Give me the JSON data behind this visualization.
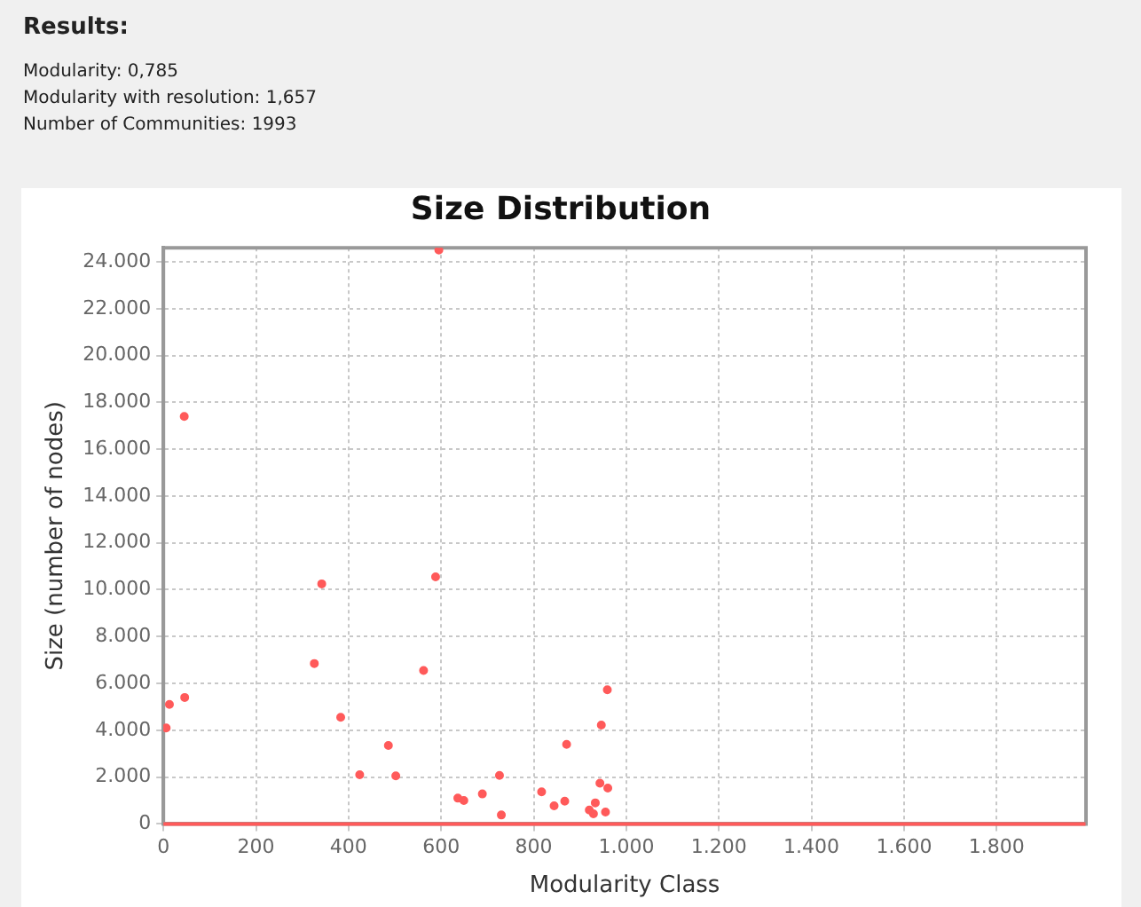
{
  "chart_data": {
    "type": "scatter",
    "title": "Size Distribution",
    "xlabel": "Modularity Class",
    "ylabel": "Size (number of nodes)",
    "annotations": [
      "Results:",
      "Modularity: 0,785",
      "Modularity with resolution: 1,657",
      "Number of Communities: 1993"
    ],
    "series": [
      {
        "marker": "circle",
        "color": "#ff5a5a",
        "x": [
          6,
          13,
          45,
          46,
          326,
          342,
          383,
          424,
          486,
          502,
          562,
          588,
          595,
          636,
          649,
          689,
          726,
          730,
          817,
          844,
          867,
          871,
          920,
          929,
          933,
          943,
          946,
          955,
          959,
          960
        ],
        "values": [
          4100,
          5100,
          17400,
          5400,
          6850,
          10250,
          4550,
          2100,
          3350,
          2050,
          6550,
          10550,
          24500,
          1100,
          1000,
          1280,
          2070,
          380,
          1370,
          770,
          970,
          3400,
          590,
          430,
          900,
          1740,
          4220,
          510,
          5730,
          1530
        ]
      },
      {
        "type": "line",
        "marker": "none",
        "color": "#ff5a5a",
        "x": [
          0,
          1992
        ],
        "values": [
          0,
          0
        ]
      }
    ],
    "xlim": [
      0,
      1993
    ],
    "ylim": [
      0,
      24600
    ],
    "xticks": [
      0,
      200,
      400,
      600,
      800,
      {
        "value": 1000,
        "label": "1.000"
      },
      {
        "value": 1200,
        "label": "1.200"
      },
      {
        "value": 1400,
        "label": "1.400"
      },
      {
        "value": 1600,
        "label": "1.600"
      },
      {
        "value": 1800,
        "label": "1.800"
      }
    ],
    "yticks": [
      0,
      {
        "value": 2000,
        "label": "2.000"
      },
      {
        "value": 4000,
        "label": "4.000"
      },
      {
        "value": 6000,
        "label": "6.000"
      },
      {
        "value": 8000,
        "label": "8.000"
      },
      {
        "value": 10000,
        "label": "10.000"
      },
      {
        "value": 12000,
        "label": "12.000"
      },
      {
        "value": 14000,
        "label": "14.000"
      },
      {
        "value": 16000,
        "label": "16.000"
      },
      {
        "value": 18000,
        "label": "18.000"
      },
      {
        "value": 20000,
        "label": "20.000"
      },
      {
        "value": 22000,
        "label": "22.000"
      },
      {
        "value": 24000,
        "label": "24.000"
      }
    ],
    "grid": true,
    "legend": false
  }
}
